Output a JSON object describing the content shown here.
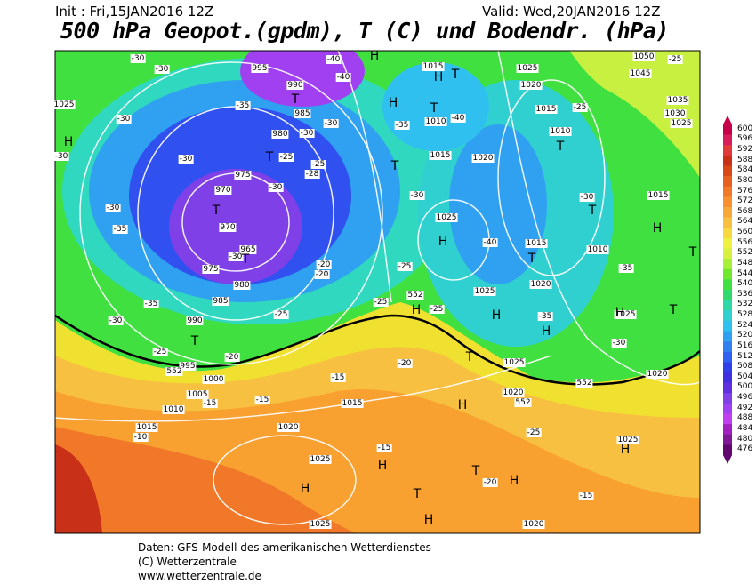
{
  "header": {
    "init": "Init : Fri,15JAN2016 12Z",
    "valid": "Valid: Wed,20JAN2016 12Z",
    "title": "500 hPa Geopot.(gpdm), T (C) und Bodendr. (hPa)"
  },
  "colorbar": {
    "labels": [
      600,
      596,
      592,
      588,
      584,
      580,
      576,
      572,
      568,
      564,
      560,
      556,
      552,
      548,
      544,
      540,
      536,
      532,
      528,
      524,
      520,
      516,
      512,
      508,
      504,
      500,
      496,
      492,
      488,
      484,
      480,
      476
    ],
    "colors": [
      "#c8004a",
      "#d81e5a",
      "#e03a3a",
      "#c83018",
      "#d84818",
      "#e86020",
      "#f07828",
      "#f89030",
      "#f8a838",
      "#f8c040",
      "#f8d840",
      "#f0f040",
      "#d8f040",
      "#a8f038",
      "#70e830",
      "#40e040",
      "#30d870",
      "#30d8a8",
      "#30d0d0",
      "#30c0f0",
      "#30a0f0",
      "#3080f0",
      "#3060f0",
      "#3040e8",
      "#4030e0",
      "#6030e0",
      "#8040e8",
      "#a040f0",
      "#c040f0",
      "#a020c0",
      "#801898",
      "#600870"
    ]
  },
  "map": {
    "pressure_labels": [
      "995",
      "990",
      "985",
      "980",
      "975",
      "970",
      "970",
      "965",
      "975",
      "980",
      "985",
      "990",
      "995",
      "1000",
      "1005",
      "1010",
      "1015",
      "1020",
      "1025",
      "1025",
      "1015",
      "1015",
      "1010",
      "1015",
      "1020",
      "1025",
      "1015",
      "1010",
      "1020",
      "1025",
      "1025",
      "1025",
      "1020",
      "1020",
      "1025",
      "1020",
      "1025",
      "1020",
      "1015",
      "1010",
      "1015",
      "1050",
      "1045",
      "1035",
      "1030",
      "1025",
      "1025"
    ],
    "temperature_labels": [
      "-30",
      "-30",
      "-35",
      "-30",
      "-30",
      "-30",
      "-30",
      "-35",
      "-25",
      "-25",
      "-28",
      "-30",
      "-30",
      "-30",
      "-35",
      "-40",
      "-40",
      "-40",
      "-30",
      "-40",
      "-35",
      "-30",
      "-25",
      "-25",
      "-20",
      "-20",
      "-25",
      "-25",
      "-25",
      "-35",
      "-30",
      "-25",
      "-20",
      "-15",
      "-20",
      "-15",
      "-15",
      "-10",
      "-15",
      "-20",
      "-15",
      "-25",
      "-35",
      "-30",
      "-25",
      "-30"
    ],
    "contour_552_labels": [
      "552",
      "552",
      "552",
      "552"
    ],
    "markers": [
      "H",
      "H",
      "T",
      "H",
      "T",
      "T",
      "T",
      "T",
      "T",
      "T",
      "T",
      "H",
      "H",
      "H",
      "T",
      "T",
      "T",
      "H",
      "T",
      "T",
      "H",
      "H",
      "H",
      "T",
      "H",
      "H",
      "T",
      "T",
      "H",
      "H",
      "H",
      "H"
    ]
  },
  "footer": {
    "lines": [
      "Daten: GFS-Modell des amerikanischen Wetterdienstes",
      "(C) Wetterzentrale",
      "www.wetterzentrale.de"
    ]
  }
}
